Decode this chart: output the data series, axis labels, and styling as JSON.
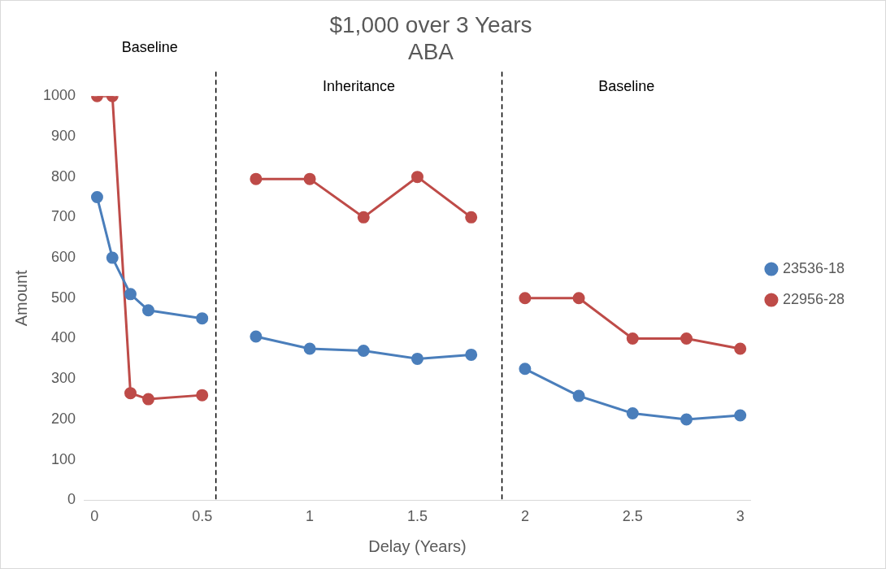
{
  "chart_data": {
    "type": "line",
    "title": "$1,000 over 3 Years",
    "subtitle": "ABA",
    "xlabel": "Delay (Years)",
    "ylabel": "Amount",
    "xlim": [
      -0.05,
      3.05
    ],
    "xticks": [
      0,
      0.5,
      1,
      1.5,
      2,
      2.5,
      3
    ],
    "ylim": [
      0,
      1000
    ],
    "yticks": [
      0,
      100,
      200,
      300,
      400,
      500,
      600,
      700,
      800,
      900,
      1000
    ],
    "x": [
      0.012,
      0.083,
      0.167,
      0.25,
      0.5,
      0.564,
      0.75,
      1,
      1.25,
      1.5,
      1.75,
      1.893,
      2,
      2.25,
      2.5,
      2.75,
      3
    ],
    "series": [
      {
        "name": "23536-18",
        "color": "#4a7ebb",
        "values": [
          750,
          600,
          510,
          470,
          450,
          null,
          405,
          375,
          370,
          350,
          360,
          null,
          325,
          258,
          215,
          200,
          210
        ]
      },
      {
        "name": "22956-28",
        "color": "#be4b48",
        "values": [
          1000,
          1000,
          265,
          250,
          260,
          null,
          795,
          795,
          700,
          800,
          700,
          null,
          500,
          500,
          400,
          400,
          375
        ]
      }
    ],
    "ref_lines": [
      {
        "axis": "x",
        "value": 0.564,
        "color": "#000000",
        "line_style": "dashed"
      },
      {
        "axis": "x",
        "value": 1.893,
        "color": "#000000",
        "line_style": "dashed"
      }
    ],
    "annotations": [
      "Baseline",
      "Inheritance",
      "Baseline"
    ],
    "grid": false,
    "legend": "right",
    "marker": "circle",
    "line_style": "solid"
  }
}
